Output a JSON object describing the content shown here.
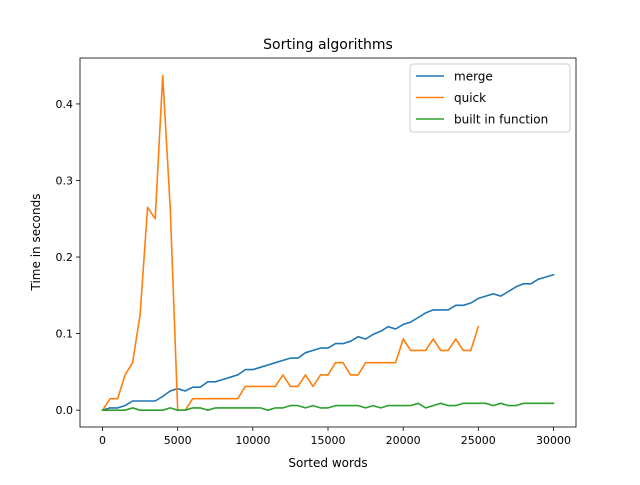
{
  "chart_data": {
    "type": "line",
    "title": "Sorting algorithms",
    "xlabel": "Sorted words",
    "ylabel": "Time in seconds",
    "xlim": [
      -1500,
      31500
    ],
    "ylim": [
      -0.022,
      0.46
    ],
    "xticks": [
      0,
      5000,
      10000,
      15000,
      20000,
      25000,
      30000
    ],
    "yticks": [
      0.0,
      0.1,
      0.2,
      0.3,
      0.4
    ],
    "xtick_labels": [
      "0",
      "5000",
      "10000",
      "15000",
      "20000",
      "25000",
      "30000"
    ],
    "ytick_labels": [
      "0.0",
      "0.1",
      "0.2",
      "0.3",
      "0.4"
    ],
    "grid": false,
    "legend_position": "top-right",
    "series": [
      {
        "name": "merge",
        "color": "#1f77b4",
        "x": [
          0,
          500,
          1000,
          1500,
          2000,
          2500,
          3000,
          3500,
          4000,
          4500,
          5000,
          5500,
          6000,
          6500,
          7000,
          7500,
          8000,
          8500,
          9000,
          9500,
          10000,
          10500,
          11000,
          11500,
          12000,
          12500,
          13000,
          13500,
          14000,
          14500,
          15000,
          15500,
          16000,
          16500,
          17000,
          17500,
          18000,
          18500,
          19000,
          19500,
          20000,
          20500,
          21000,
          21500,
          22000,
          22500,
          23000,
          23500,
          24000,
          24500,
          25000,
          25500,
          26000,
          26500,
          27000,
          27500,
          28000,
          28500,
          29000,
          29500,
          30000
        ],
        "y": [
          0.0,
          0.003,
          0.003,
          0.006,
          0.012,
          0.012,
          0.012,
          0.012,
          0.018,
          0.025,
          0.028,
          0.025,
          0.03,
          0.03,
          0.037,
          0.037,
          0.04,
          0.043,
          0.046,
          0.053,
          0.053,
          0.056,
          0.059,
          0.062,
          0.065,
          0.068,
          0.068,
          0.075,
          0.078,
          0.081,
          0.081,
          0.087,
          0.087,
          0.09,
          0.096,
          0.093,
          0.099,
          0.103,
          0.109,
          0.106,
          0.112,
          0.115,
          0.121,
          0.127,
          0.131,
          0.131,
          0.131,
          0.137,
          0.137,
          0.14,
          0.146,
          0.149,
          0.152,
          0.149,
          0.155,
          0.161,
          0.165,
          0.165,
          0.171,
          0.174,
          0.177
        ]
      },
      {
        "name": "quick",
        "color": "#ff7f0e",
        "x": [
          0,
          500,
          1000,
          1500,
          2000,
          2500,
          3000,
          3500,
          4000,
          4500,
          5000,
          5500,
          6000,
          6500,
          7000,
          7500,
          8000,
          8500,
          9000,
          9500,
          10000,
          10500,
          11000,
          11500,
          12000,
          12500,
          13000,
          13500,
          14000,
          14500,
          15000,
          15500,
          16000,
          16500,
          17000,
          17500,
          18000,
          18500,
          19000,
          19500,
          20000,
          20500,
          21000,
          21500,
          22000,
          22500,
          23000,
          23500,
          24000,
          24500,
          25000
        ],
        "y": [
          0.0,
          0.015,
          0.015,
          0.046,
          0.062,
          0.125,
          0.265,
          0.25,
          0.437,
          0.265,
          0.0,
          0.0,
          0.015,
          0.015,
          0.015,
          0.015,
          0.015,
          0.015,
          0.015,
          0.031,
          0.031,
          0.031,
          0.031,
          0.031,
          0.046,
          0.031,
          0.031,
          0.046,
          0.031,
          0.046,
          0.046,
          0.062,
          0.062,
          0.046,
          0.046,
          0.062,
          0.062,
          0.062,
          0.062,
          0.062,
          0.093,
          0.078,
          0.078,
          0.078,
          0.093,
          0.078,
          0.078,
          0.093,
          0.078,
          0.078,
          0.109
        ]
      },
      {
        "name": "built in function",
        "color": "#2ca02c",
        "x": [
          0,
          500,
          1000,
          1500,
          2000,
          2500,
          3000,
          3500,
          4000,
          4500,
          5000,
          5500,
          6000,
          6500,
          7000,
          7500,
          8000,
          8500,
          9000,
          9500,
          10000,
          10500,
          11000,
          11500,
          12000,
          12500,
          13000,
          13500,
          14000,
          14500,
          15000,
          15500,
          16000,
          16500,
          17000,
          17500,
          18000,
          18500,
          19000,
          19500,
          20000,
          20500,
          21000,
          21500,
          22000,
          22500,
          23000,
          23500,
          24000,
          24500,
          25000,
          25500,
          26000,
          26500,
          27000,
          27500,
          28000,
          28500,
          29000,
          29500,
          30000
        ],
        "y": [
          0.0,
          0.0,
          0.0,
          0.0,
          0.003,
          0.0,
          0.0,
          0.0,
          0.0,
          0.003,
          0.0,
          0.0,
          0.003,
          0.003,
          0.0,
          0.003,
          0.003,
          0.003,
          0.003,
          0.003,
          0.003,
          0.003,
          0.0,
          0.003,
          0.003,
          0.006,
          0.006,
          0.003,
          0.006,
          0.003,
          0.003,
          0.006,
          0.006,
          0.006,
          0.006,
          0.003,
          0.006,
          0.003,
          0.006,
          0.006,
          0.006,
          0.006,
          0.009,
          0.003,
          0.006,
          0.009,
          0.006,
          0.006,
          0.009,
          0.009,
          0.009,
          0.009,
          0.006,
          0.009,
          0.006,
          0.006,
          0.009,
          0.009,
          0.009,
          0.009,
          0.009
        ]
      }
    ]
  }
}
